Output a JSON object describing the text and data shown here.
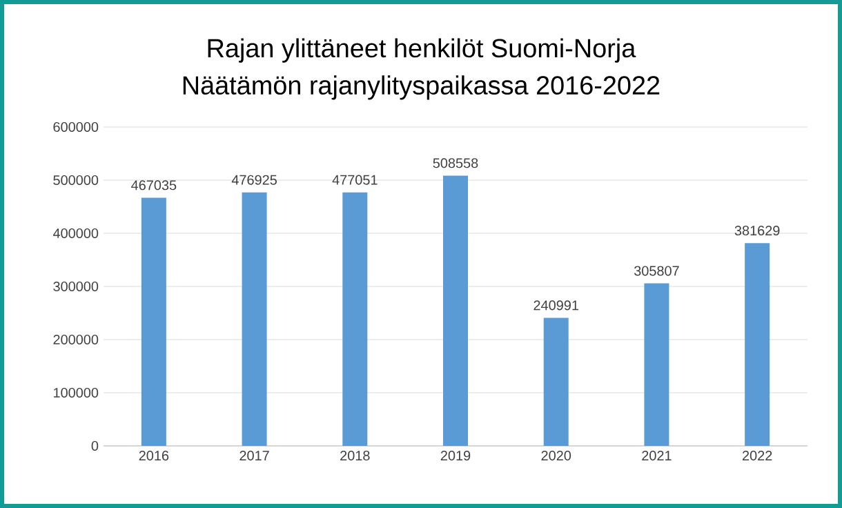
{
  "chart_data": {
    "type": "bar",
    "title": "Rajan ylittäneet henkilöt Suomi-Norja Näätämön rajanylityspaikassa 2016-2022",
    "categories": [
      "2016",
      "2017",
      "2018",
      "2019",
      "2020",
      "2021",
      "2022"
    ],
    "values": [
      467035,
      476925,
      477051,
      508558,
      240991,
      305807,
      381629
    ],
    "color": "#5b9bd5",
    "ylim": [
      0,
      600000
    ],
    "yticks": [
      0,
      100000,
      200000,
      300000,
      400000,
      500000,
      600000
    ],
    "grid": "y",
    "data_labels": true
  }
}
